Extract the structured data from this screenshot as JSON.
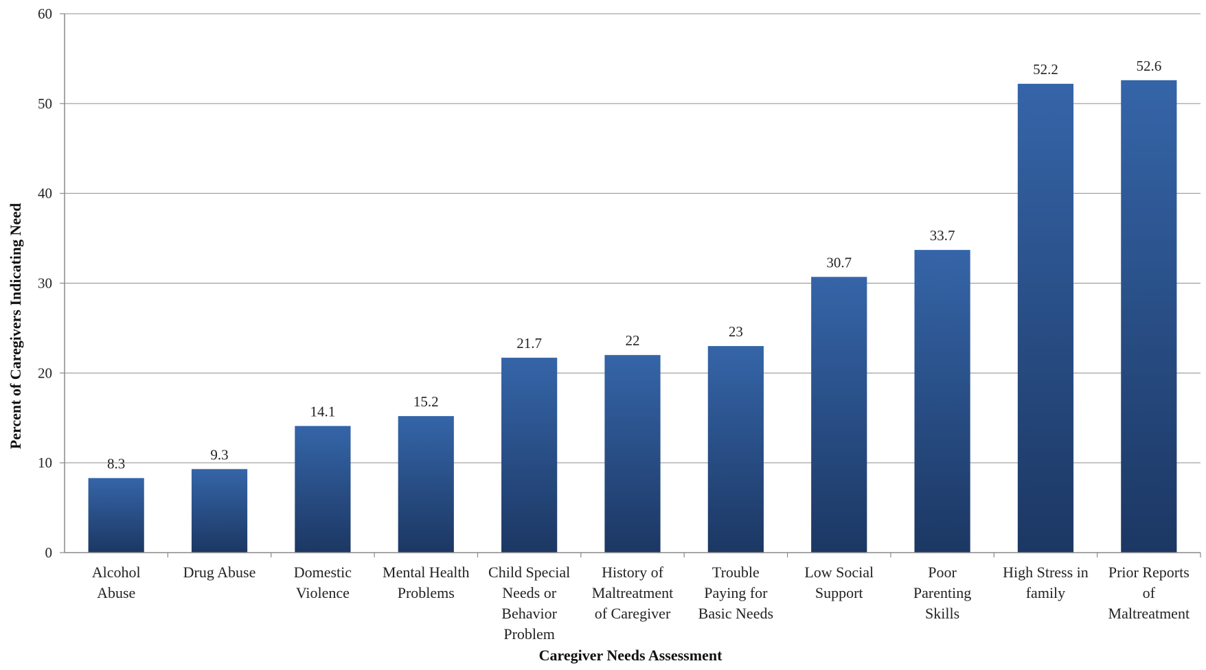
{
  "chart_data": {
    "type": "bar",
    "title": "",
    "xlabel": "Caregiver Needs Assessment",
    "ylabel": "Percent of Caregivers Indicating Need",
    "ylim": [
      0,
      60
    ],
    "yticks": [
      0,
      10,
      20,
      30,
      40,
      50,
      60
    ],
    "grid": true,
    "legend": "none",
    "bar_color_top": "#3565A8",
    "bar_color_bottom": "#1C3763",
    "categories": [
      [
        "Alcohol",
        "Abuse"
      ],
      [
        "Drug Abuse"
      ],
      [
        "Domestic",
        "Violence"
      ],
      [
        "Mental Health",
        "Problems"
      ],
      [
        "Child Special",
        "Needs or",
        "Behavior",
        "Problem"
      ],
      [
        "History of",
        "Maltreatment",
        "of Caregiver"
      ],
      [
        "Trouble",
        "Paying for",
        "Basic Needs"
      ],
      [
        "Low Social",
        "Support"
      ],
      [
        "Poor",
        "Parenting",
        "Skills"
      ],
      [
        "High Stress in",
        "family"
      ],
      [
        "Prior Reports",
        "of",
        "Maltreatment"
      ]
    ],
    "values": [
      8.3,
      9.3,
      14.1,
      15.2,
      21.7,
      22,
      23,
      30.7,
      33.7,
      52.2,
      52.6
    ],
    "value_labels": [
      "8.3",
      "9.3",
      "14.1",
      "15.2",
      "21.7",
      "22",
      "23",
      "30.7",
      "33.7",
      "52.2",
      "52.6"
    ]
  }
}
